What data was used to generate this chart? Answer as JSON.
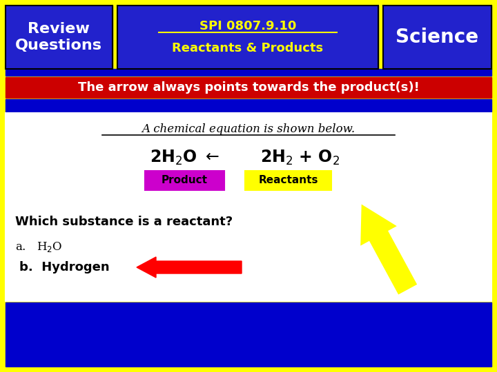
{
  "bg_color": "#FFFF00",
  "header_box1_color": "#2222CC",
  "header_box2_color": "#2222CC",
  "header_box3_color": "#2222CC",
  "header_text1": "Review\nQuestions",
  "header_text2_line1": "SPI 0807.9.10",
  "header_text2_line2": "Reactants & Products",
  "header_text3": "Science",
  "banner_color": "#CC0000",
  "banner_text": "The arrow always points towards the product(s)!",
  "blue_bar_color": "#0000CC",
  "white_box_color": "#FFFFFF",
  "content_title": "A chemical equation is shown below.",
  "product_box_color": "#CC00CC",
  "product_box_text": "Product",
  "reactants_box_color": "#FFFF00",
  "reactants_box_text": "Reactants",
  "question_text": "Which substance is a reactant?",
  "answer_b": "b.  Hydrogen",
  "answer_b_box_border": "#FF0000"
}
